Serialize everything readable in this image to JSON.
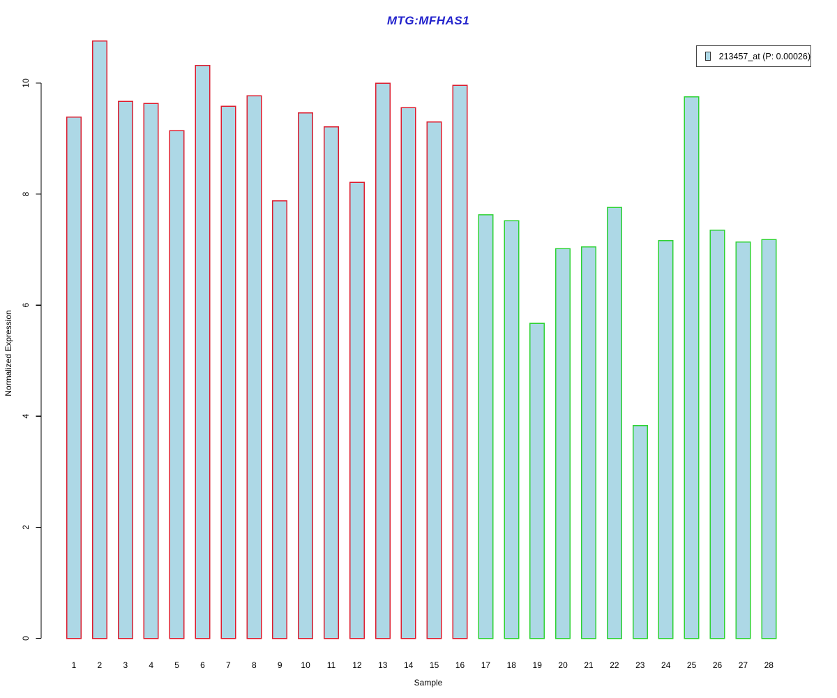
{
  "title": {
    "text": "MTG:MFHAS1",
    "color": "#2222cc"
  },
  "axes": {
    "y_label": "Normalized Expression",
    "x_label": "Sample"
  },
  "legend": {
    "label": "213457_at (P: 0.00026)",
    "swatch_color": "#add8e6"
  },
  "chart_data": {
    "type": "bar",
    "title": "MTG:MFHAS1",
    "xlabel": "Sample",
    "ylabel": "Normalized Expression",
    "ylim": [
      0,
      10.9
    ],
    "yticks": [
      0,
      2,
      4,
      6,
      8,
      10
    ],
    "grid": false,
    "legend_position": "top-right",
    "legend_entries": [
      "213457_at (P: 0.00026)"
    ],
    "bar_fill_color": "#add8e6",
    "categories": [
      "1",
      "2",
      "3",
      "4",
      "5",
      "6",
      "7",
      "8",
      "9",
      "10",
      "11",
      "12",
      "13",
      "14",
      "15",
      "16",
      "17",
      "18",
      "19",
      "20",
      "21",
      "22",
      "23",
      "24",
      "25",
      "26",
      "27",
      "28"
    ],
    "values": [
      9.39,
      10.76,
      9.67,
      9.63,
      9.14,
      10.32,
      9.58,
      9.77,
      7.88,
      9.46,
      9.21,
      8.21,
      10.0,
      9.56,
      9.3,
      9.96,
      7.63,
      7.52,
      5.67,
      7.02,
      7.05,
      7.76,
      3.83,
      7.16,
      9.75,
      7.35,
      7.14,
      7.18
    ],
    "groups": [
      {
        "name": "samples 1-16",
        "border_color": "#dd1c2e",
        "count": 16
      },
      {
        "name": "samples 17-28",
        "border_color": "#2ed233",
        "count": 12
      }
    ]
  }
}
